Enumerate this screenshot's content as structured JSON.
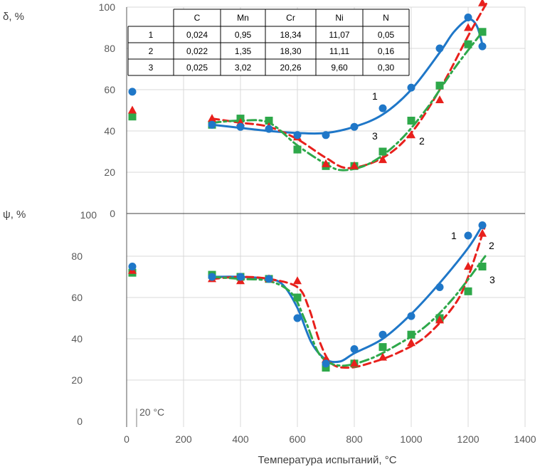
{
  "chart_data": [
    {
      "type": "scatter",
      "ylabel": "δ, %",
      "ylim": [
        0,
        100
      ],
      "yticks": [
        "0",
        "20",
        "40",
        "60",
        "80",
        "100"
      ],
      "series": [
        {
          "name": "1",
          "color": "#1f77c8",
          "marker": "circle",
          "x": [
            20,
            300,
            400,
            500,
            600,
            700,
            800,
            900,
            1000,
            1100,
            1200,
            1250
          ],
          "y": [
            59,
            43,
            42,
            41,
            38,
            38,
            42,
            51,
            61,
            80,
            95,
            81
          ],
          "fit_x": [
            300,
            400,
            500,
            600,
            700,
            800,
            900,
            1000,
            1100,
            1150,
            1200,
            1230,
            1250
          ],
          "fit_y": [
            43,
            41.5,
            40,
            39,
            39,
            42,
            48,
            60,
            78,
            88,
            94,
            91,
            82
          ]
        },
        {
          "name": "2",
          "color": "#e8201c",
          "marker": "triangle",
          "x": [
            20,
            300,
            400,
            500,
            600,
            700,
            800,
            900,
            1000,
            1100,
            1200,
            1250
          ],
          "y": [
            50,
            46,
            44,
            42,
            37,
            24,
            23,
            26,
            38,
            55,
            90,
            102
          ],
          "fit_x": [
            300,
            400,
            500,
            600,
            700,
            780,
            900,
            1000,
            1100,
            1200,
            1265
          ],
          "fit_y": [
            46,
            44,
            42,
            36,
            27,
            22,
            27,
            39,
            60,
            86,
            102
          ]
        },
        {
          "name": "3",
          "color": "#2ea84a",
          "marker": "square",
          "x": [
            20,
            300,
            400,
            500,
            600,
            700,
            800,
            900,
            1000,
            1100,
            1200,
            1250
          ],
          "y": [
            47,
            43,
            46,
            45,
            31,
            23,
            23,
            30,
            45,
            62,
            82,
            88
          ],
          "fit_x": [
            300,
            400,
            500,
            600,
            700,
            760,
            850,
            950,
            1050,
            1150,
            1250
          ],
          "fit_y": [
            44,
            45,
            44,
            33,
            24,
            21,
            24,
            34,
            50,
            70,
            88
          ]
        }
      ]
    },
    {
      "type": "scatter",
      "ylabel": "ψ, %",
      "ylim": [
        0,
        100
      ],
      "yticks": [
        "0",
        "20",
        "40",
        "60",
        "80",
        "100"
      ],
      "xlabel": "Температура испытаний, °C",
      "xlim": [
        0,
        1400
      ],
      "xticks": [
        "0",
        "200",
        "400",
        "600",
        "800",
        "1000",
        "1200",
        "1400"
      ],
      "annotation": "20 °C",
      "series": [
        {
          "name": "1",
          "color": "#1f77c8",
          "marker": "circle",
          "x": [
            20,
            300,
            400,
            500,
            600,
            700,
            800,
            900,
            1000,
            1100,
            1200,
            1250
          ],
          "y": [
            75,
            70,
            70,
            69,
            50,
            28,
            35,
            42,
            51,
            65,
            90,
            95
          ],
          "fit_x": [
            300,
            400,
            500,
            550,
            600,
            650,
            700,
            750,
            800,
            900,
            1000,
            1100,
            1200,
            1250
          ],
          "fit_y": [
            70,
            70,
            69,
            66,
            55,
            38,
            30,
            29,
            33,
            40,
            52,
            67,
            84,
            95
          ]
        },
        {
          "name": "2",
          "color": "#e8201c",
          "marker": "triangle",
          "x": [
            20,
            300,
            400,
            500,
            600,
            700,
            800,
            900,
            1000,
            1100,
            1200,
            1250
          ],
          "y": [
            73,
            69,
            68,
            69,
            68,
            30,
            28,
            31,
            38,
            49,
            75,
            91
          ],
          "fit_x": [
            300,
            400,
            500,
            600,
            640,
            680,
            720,
            780,
            850,
            950,
            1050,
            1150,
            1200,
            1260
          ],
          "fit_y": [
            69,
            70,
            69,
            65,
            55,
            38,
            28,
            26,
            28,
            33,
            41,
            56,
            70,
            95
          ]
        },
        {
          "name": "3",
          "color": "#2ea84a",
          "marker": "square",
          "x": [
            20,
            300,
            400,
            500,
            600,
            700,
            800,
            900,
            1000,
            1100,
            1200,
            1250
          ],
          "y": [
            72,
            71,
            70,
            69,
            60,
            26,
            28,
            36,
            42,
            50,
            63,
            75
          ],
          "fit_x": [
            300,
            400,
            500,
            580,
            630,
            680,
            750,
            850,
            950,
            1050,
            1150,
            1260
          ],
          "fit_y": [
            70,
            69,
            68,
            62,
            48,
            32,
            27,
            30,
            37,
            46,
            60,
            80
          ]
        }
      ]
    }
  ],
  "composition_table": {
    "headers": [
      "",
      "C",
      "Mn",
      "Cr",
      "Ni",
      "N"
    ],
    "rows": [
      [
        "1",
        "0,024",
        "0,95",
        "18,34",
        "11,07",
        "0,05"
      ],
      [
        "2",
        "0,022",
        "1,35",
        "18,30",
        "11,11",
        "0,16"
      ],
      [
        "3",
        "0,025",
        "3,02",
        "20,26",
        "9,60",
        "0,30"
      ]
    ]
  }
}
